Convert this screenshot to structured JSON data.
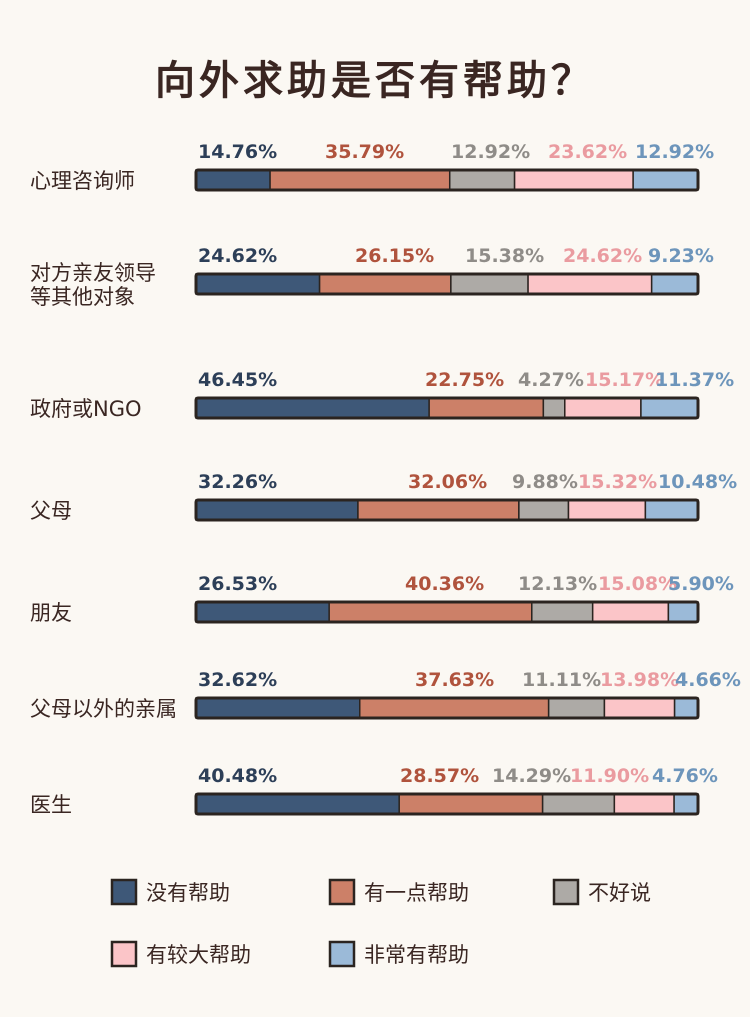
{
  "title": "向外求助是否有帮助？",
  "colors": {
    "series": [
      "#3e5878",
      "#cc8068",
      "#adaaa6",
      "#fbc5c8",
      "#9bbad8"
    ],
    "labels": [
      "#2d3f58",
      "#b0533d",
      "#8f8c88",
      "#ea9ba0",
      "#6d95bb"
    ],
    "outline": "#2b2420"
  },
  "chart_data": {
    "type": "bar",
    "stacked": true,
    "orientation": "horizontal",
    "categories": [
      {
        "name": "心理咨询师",
        "lines": [
          "心理咨询师"
        ]
      },
      {
        "name": "对方亲友领导等其他对象",
        "lines": [
          "对方亲友领导",
          "等其他对象"
        ]
      },
      {
        "name": "政府或NGO",
        "lines": [
          "政府或NGO"
        ]
      },
      {
        "name": "父母",
        "lines": [
          "父母"
        ]
      },
      {
        "name": "朋友",
        "lines": [
          "朋友"
        ]
      },
      {
        "name": "父母以外的亲属",
        "lines": [
          "父母以外的亲属"
        ]
      },
      {
        "name": "医生",
        "lines": [
          "医生"
        ]
      }
    ],
    "series": [
      {
        "name": "没有帮助",
        "values": [
          14.76,
          24.62,
          46.45,
          32.26,
          26.53,
          32.62,
          40.48
        ]
      },
      {
        "name": "有一点帮助",
        "values": [
          35.79,
          26.15,
          22.75,
          32.06,
          40.36,
          37.63,
          28.57
        ]
      },
      {
        "name": "不好说",
        "values": [
          12.92,
          15.38,
          4.27,
          9.88,
          12.13,
          11.11,
          14.29
        ]
      },
      {
        "name": "有较大帮助",
        "values": [
          23.62,
          24.62,
          15.17,
          15.32,
          15.08,
          13.98,
          11.9
        ]
      },
      {
        "name": "非常有帮助",
        "values": [
          12.92,
          9.23,
          11.37,
          10.48,
          5.9,
          4.66,
          4.76
        ]
      }
    ],
    "value_labels": [
      [
        "14.76%",
        "35.79%",
        "12.92%",
        "23.62%",
        "12.92%"
      ],
      [
        "24.62%",
        "26.15%",
        "15.38%",
        "24.62%",
        "9.23%"
      ],
      [
        "46.45%",
        "22.75%",
        "4.27%",
        "15.17%",
        "11.37%"
      ],
      [
        "32.26%",
        "32.06%",
        "9.88%",
        "15.32%",
        "10.48%"
      ],
      [
        "26.53%",
        "40.36%",
        "12.13%",
        "15.08%",
        "5.90%"
      ],
      [
        "32.62%",
        "37.63%",
        "11.11%",
        "13.98%",
        "4.66%"
      ],
      [
        "40.48%",
        "28.57%",
        "14.29%",
        "11.90%",
        "4.76%"
      ]
    ],
    "xlim": [
      0,
      100
    ],
    "legend_position": "bottom",
    "grid": false
  }
}
